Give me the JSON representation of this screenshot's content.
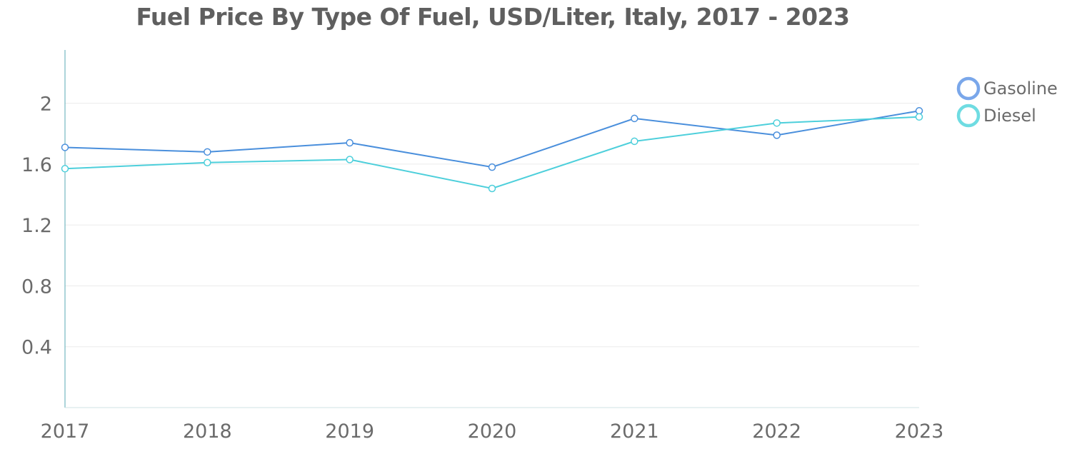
{
  "chart_data": {
    "type": "line",
    "title": "Fuel Price By Type Of Fuel, USD/Liter, Italy, 2017 - 2023",
    "xlabel": "",
    "ylabel": "",
    "categories": [
      "2017",
      "2018",
      "2019",
      "2020",
      "2021",
      "2022",
      "2023"
    ],
    "ylim": [
      0,
      2.35
    ],
    "yticks": [
      0.4,
      0.8,
      1.2,
      1.6,
      2
    ],
    "ytick_labels": [
      "0.4",
      "0.8",
      "1.2",
      "1.6",
      "2"
    ],
    "grid": true,
    "legend_position": "top-right",
    "series": [
      {
        "name": "Gasoline",
        "color": "#4a8fdc",
        "legend_color": "#7aa7ea",
        "values": [
          1.71,
          1.68,
          1.74,
          1.58,
          1.9,
          1.79,
          1.95
        ]
      },
      {
        "name": "Diesel",
        "color": "#4dcfdb",
        "legend_color": "#6fdce2",
        "values": [
          1.57,
          1.61,
          1.63,
          1.44,
          1.75,
          1.87,
          1.91
        ]
      }
    ]
  }
}
